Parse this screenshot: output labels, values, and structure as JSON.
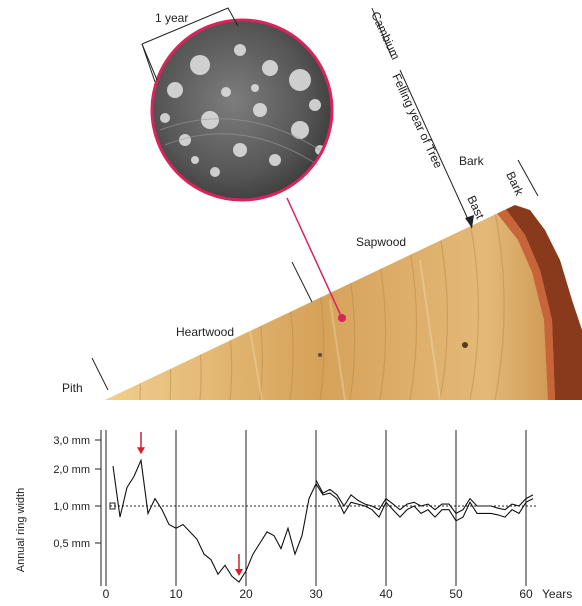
{
  "labels": {
    "one_year": "1 year",
    "cambium": "Cambium",
    "felling_year": "Felling year of Tree",
    "bark_upper": "Bark",
    "bark_lower": "Bark",
    "bast": "Bast",
    "sapwood": "Sapwood",
    "heartwood": "Heartwood",
    "pith": "Pith"
  },
  "colors": {
    "magnifier_ring": "#d8245a",
    "arrow": "#d8202a",
    "wood_light": "#e8c27a",
    "wood_dark": "#b07a30",
    "bark": "#8a3a1c"
  },
  "chart_data": {
    "type": "line",
    "ylabel": "Annual ring width",
    "xlabel": "Years",
    "x_ticks": [
      "0",
      "10",
      "20",
      "30",
      "40",
      "50",
      "60"
    ],
    "y_ticks": [
      "3,0 mm",
      "2,0 mm",
      "1,0 mm",
      "0,5 mm"
    ],
    "xlim": [
      0,
      62
    ],
    "series": [
      {
        "x": [
          1,
          2,
          3,
          4,
          5,
          6,
          7,
          8,
          9,
          10,
          11,
          12,
          13,
          14,
          15,
          16,
          17,
          18,
          19,
          20,
          21,
          22,
          23,
          24,
          25,
          26,
          27,
          28,
          29,
          30,
          31,
          32,
          33,
          34,
          35,
          36,
          37,
          38,
          39,
          40,
          41,
          42,
          43,
          44,
          45,
          46,
          47,
          48,
          49,
          50,
          51,
          52,
          53,
          54,
          55,
          56,
          57,
          58,
          59,
          60,
          61
        ],
        "y": [
          2.1,
          0.85,
          1.5,
          1.8,
          2.3,
          0.9,
          1.2,
          0.95,
          0.75,
          0.7,
          0.75,
          0.65,
          0.55,
          0.4,
          0.35,
          0.22,
          0.3,
          0.2,
          0.15,
          0.25,
          0.4,
          0.5,
          0.65,
          0.6,
          0.45,
          0.7,
          0.4,
          0.6,
          1.2,
          1.6,
          1.3,
          1.35,
          1.2,
          0.9,
          1.1,
          1.05,
          1.0,
          0.95,
          0.85,
          1.1,
          0.95,
          0.85,
          0.95,
          1.0,
          0.9,
          0.95,
          0.85,
          0.95,
          0.95,
          0.8,
          0.85,
          1.1,
          0.9,
          0.9,
          0.9,
          0.88,
          0.85,
          0.95,
          0.9,
          1.1,
          1.2
        ]
      },
      {
        "x": [
          30,
          31,
          32,
          33,
          34,
          35,
          36,
          37,
          38,
          39,
          40,
          41,
          42,
          43,
          44,
          45,
          46,
          47,
          48,
          49,
          50,
          51,
          52,
          53,
          54,
          55,
          56,
          57,
          58,
          59,
          60,
          61
        ],
        "y": [
          1.7,
          1.35,
          1.45,
          1.3,
          1.0,
          1.3,
          1.15,
          1.05,
          1.0,
          0.95,
          1.2,
          1.05,
          0.95,
          1.05,
          1.1,
          1.0,
          1.05,
          0.95,
          1.05,
          1.05,
          0.9,
          0.95,
          1.2,
          1.0,
          1.0,
          1.0,
          0.97,
          0.95,
          1.05,
          1.0,
          1.2,
          1.3
        ]
      }
    ],
    "markers": [
      5,
      19
    ],
    "gridlines_x": [
      10,
      20,
      30,
      40,
      50,
      60
    ]
  }
}
